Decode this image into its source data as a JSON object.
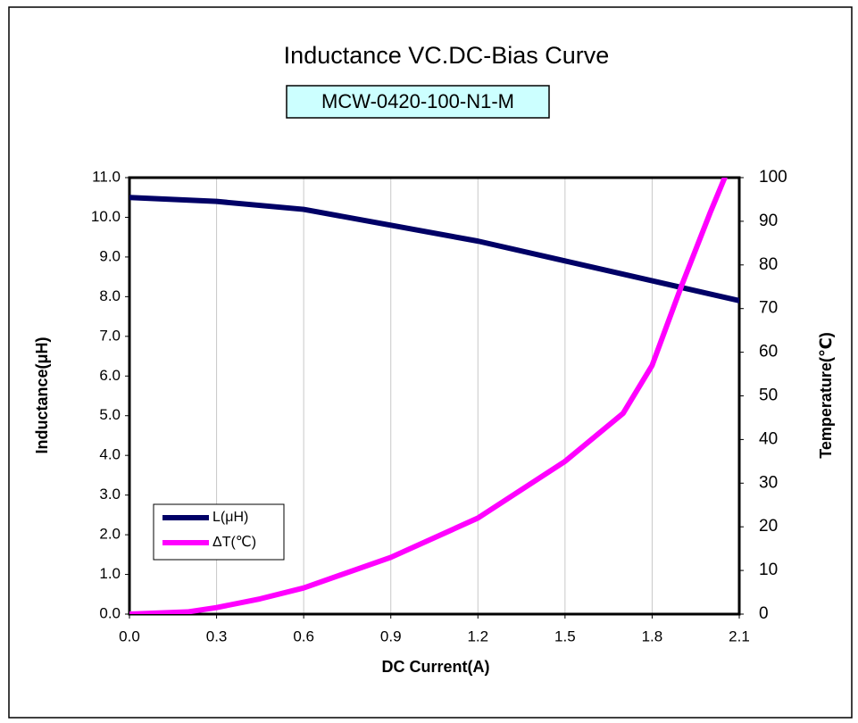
{
  "chart_data": {
    "type": "line",
    "title": "Inductance VC.DC-Bias Curve",
    "subtitle": "MCW-0420-100-N1-M",
    "xlabel": "DC Current(A)",
    "ylabel": "Inductance(μH)",
    "y2label": "Temperature(℃)",
    "xlim": [
      0,
      2.1
    ],
    "xticks": [
      {
        "value": 0,
        "label": "0.0"
      },
      0.3,
      0.6,
      0.9,
      1.2,
      1.5,
      1.8,
      2.1
    ],
    "ylim": [
      0,
      11
    ],
    "yticks": [
      {
        "value": 0,
        "label": "0.0"
      },
      {
        "value": 1,
        "label": "1.0"
      },
      {
        "value": 2,
        "label": "2.0"
      },
      {
        "value": 3,
        "label": "3.0"
      },
      {
        "value": 4,
        "label": "4.0"
      },
      {
        "value": 5,
        "label": "5.0"
      },
      {
        "value": 6,
        "label": "6.0"
      },
      {
        "value": 7,
        "label": "7.0"
      },
      {
        "value": 8,
        "label": "8.0"
      },
      {
        "value": 9,
        "label": "9.0"
      },
      {
        "value": 10,
        "label": "10.0"
      },
      {
        "value": 11,
        "label": "11.0"
      }
    ],
    "y2lim": [
      0,
      100
    ],
    "y2ticks": [
      0,
      10,
      20,
      30,
      40,
      50,
      60,
      70,
      80,
      90,
      100
    ],
    "grid": "x",
    "legend": "lower left",
    "series": [
      {
        "name": "L(μH)",
        "color": "#000066",
        "x": [
          0,
          0.3,
          0.6,
          0.9,
          1.2,
          1.5,
          1.8,
          2.1
        ],
        "values": [
          10.5,
          10.4,
          10.2,
          9.8,
          9.4,
          8.9,
          8.4,
          7.9
        ]
      },
      {
        "name": "ΔT(℃)",
        "color": "#ff00ff",
        "axis": "y2",
        "x": [
          0,
          0.2,
          0.3,
          0.45,
          0.6,
          0.9,
          1.2,
          1.5,
          1.7,
          1.8,
          1.9,
          2.0,
          2.05
        ],
        "values": [
          0,
          0.5,
          1.5,
          3.5,
          6,
          13,
          22,
          35,
          46,
          57,
          75,
          92,
          100
        ]
      }
    ]
  }
}
